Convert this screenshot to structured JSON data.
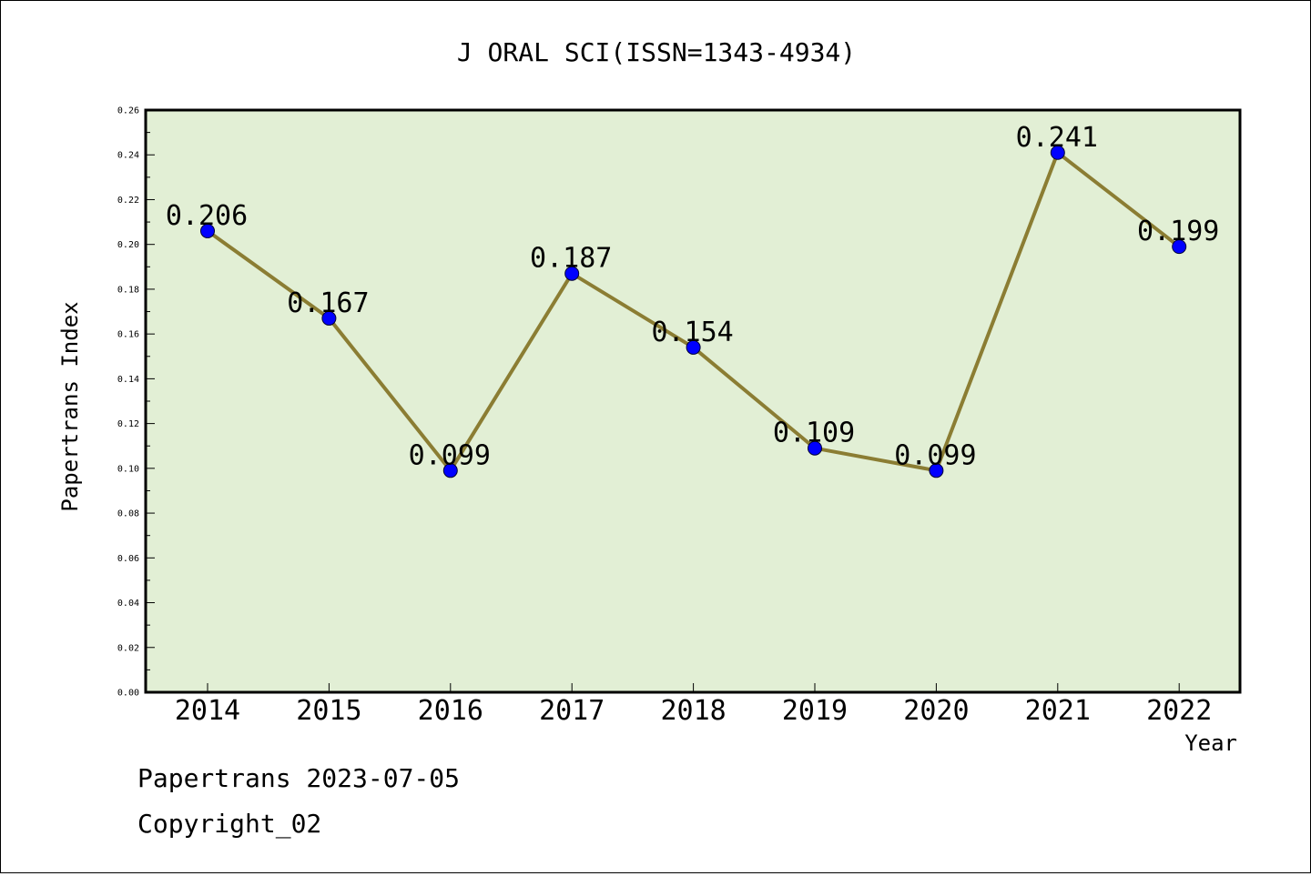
{
  "chart_data": {
    "type": "line",
    "title": "J ORAL SCI(ISSN=1343-4934)",
    "xlabel": "Year",
    "ylabel": "Papertrans Index",
    "categories": [
      "2014",
      "2015",
      "2016",
      "2017",
      "2018",
      "2019",
      "2020",
      "2021",
      "2022"
    ],
    "values": [
      0.206,
      0.167,
      0.099,
      0.187,
      0.154,
      0.109,
      0.099,
      0.241,
      0.199
    ],
    "data_labels": [
      "0.206",
      "0.167",
      "0.099",
      "0.187",
      "0.154",
      "0.109",
      "0.099",
      "0.241",
      "0.199"
    ],
    "ylim": [
      0,
      0.26
    ],
    "yticks": [
      "0.00",
      "0.02",
      "0.04",
      "0.06",
      "0.08",
      "0.10",
      "0.12",
      "0.14",
      "0.16",
      "0.18",
      "0.20",
      "0.22",
      "0.24",
      "0.26"
    ],
    "grid": false,
    "colors": {
      "plot_background": "#e2efd5",
      "line": "#8b7d33",
      "marker": "#0000ff"
    }
  },
  "footer": {
    "line1": "Papertrans 2023-07-05",
    "line2": "Copyright_02"
  }
}
